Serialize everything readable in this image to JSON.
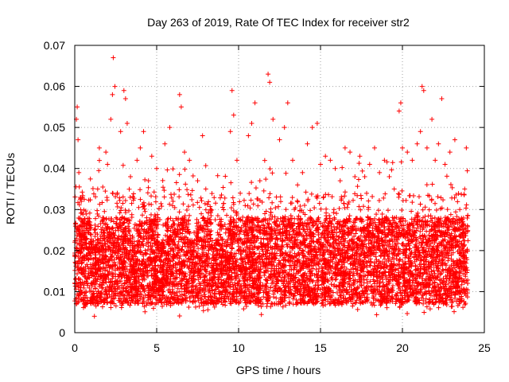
{
  "chart_data": {
    "type": "scatter",
    "title": "Day 263 of 2019, Rate Of TEC Index for receiver str2",
    "xlabel": "GPS time / hours",
    "ylabel": "ROTI / TECUs",
    "xlim": [
      0,
      25
    ],
    "ylim": [
      0,
      0.07
    ],
    "x_ticks": [
      0,
      5,
      10,
      15,
      20,
      25
    ],
    "x_tick_labels": [
      "0",
      "5",
      "10",
      "15",
      "20",
      "25"
    ],
    "y_ticks": [
      0,
      0.01,
      0.02,
      0.03,
      0.04,
      0.05,
      0.06,
      0.07
    ],
    "y_tick_labels": [
      "0",
      "0.01",
      "0.02",
      "0.03",
      "0.04",
      "0.05",
      "0.06",
      "0.07"
    ],
    "grid": true,
    "marker": "+",
    "series_color": "#ff0000",
    "x_range": [
      0,
      24
    ],
    "points": [
      [
        0.05,
        0.013
      ],
      [
        0.1,
        0.052
      ],
      [
        0.15,
        0.055
      ],
      [
        0.2,
        0.047
      ],
      [
        0.25,
        0.039
      ],
      [
        0.3,
        0.02
      ],
      [
        0.4,
        0.032
      ],
      [
        0.5,
        0.015
      ],
      [
        0.6,
        0.022
      ],
      [
        0.8,
        0.018
      ],
      [
        1.0,
        0.012
      ],
      [
        1.1,
        0.008
      ],
      [
        1.2,
        0.004
      ],
      [
        1.4,
        0.035
      ],
      [
        1.5,
        0.045
      ],
      [
        1.7,
        0.028
      ],
      [
        1.9,
        0.044
      ],
      [
        2.0,
        0.041
      ],
      [
        2.2,
        0.052
      ],
      [
        2.3,
        0.058
      ],
      [
        2.35,
        0.067
      ],
      [
        2.45,
        0.06
      ],
      [
        2.6,
        0.034
      ],
      [
        2.8,
        0.049
      ],
      [
        3.0,
        0.059
      ],
      [
        3.1,
        0.057
      ],
      [
        3.2,
        0.051
      ],
      [
        3.4,
        0.038
      ],
      [
        3.6,
        0.012
      ],
      [
        3.8,
        0.042
      ],
      [
        4.0,
        0.045
      ],
      [
        4.2,
        0.049
      ],
      [
        4.5,
        0.037
      ],
      [
        4.7,
        0.043
      ],
      [
        5.0,
        0.04
      ],
      [
        5.2,
        0.011
      ],
      [
        5.5,
        0.046
      ],
      [
        5.8,
        0.05
      ],
      [
        6.0,
        0.032
      ],
      [
        6.2,
        0.012
      ],
      [
        6.4,
        0.058
      ],
      [
        6.5,
        0.055
      ],
      [
        6.7,
        0.044
      ],
      [
        7.0,
        0.042
      ],
      [
        7.2,
        0.009
      ],
      [
        7.5,
        0.037
      ],
      [
        7.8,
        0.048
      ],
      [
        8.0,
        0.035
      ],
      [
        8.3,
        0.03
      ],
      [
        8.6,
        0.015
      ],
      [
        8.8,
        0.013
      ],
      [
        9.0,
        0.02
      ],
      [
        9.3,
        0.018
      ],
      [
        9.5,
        0.049
      ],
      [
        9.6,
        0.059
      ],
      [
        9.7,
        0.053
      ],
      [
        9.9,
        0.042
      ],
      [
        10.1,
        0.025
      ],
      [
        10.3,
        0.02
      ],
      [
        10.6,
        0.048
      ],
      [
        10.8,
        0.051
      ],
      [
        11.0,
        0.056
      ],
      [
        11.3,
        0.037
      ],
      [
        11.6,
        0.029
      ],
      [
        11.8,
        0.063
      ],
      [
        11.9,
        0.061
      ],
      [
        12.1,
        0.052
      ],
      [
        12.5,
        0.047
      ],
      [
        12.8,
        0.05
      ],
      [
        13.0,
        0.056
      ],
      [
        13.3,
        0.042
      ],
      [
        13.6,
        0.036
      ],
      [
        13.9,
        0.039
      ],
      [
        14.2,
        0.046
      ],
      [
        14.5,
        0.05
      ],
      [
        14.8,
        0.051
      ],
      [
        15.0,
        0.041
      ],
      [
        15.3,
        0.043
      ],
      [
        15.6,
        0.042
      ],
      [
        15.9,
        0.04
      ],
      [
        16.2,
        0.037
      ],
      [
        16.5,
        0.045
      ],
      [
        16.8,
        0.044
      ],
      [
        17.1,
        0.038
      ],
      [
        17.4,
        0.043
      ],
      [
        17.7,
        0.038
      ],
      [
        18.0,
        0.041
      ],
      [
        18.3,
        0.045
      ],
      [
        18.6,
        0.039
      ],
      [
        18.9,
        0.042
      ],
      [
        19.2,
        0.038
      ],
      [
        19.5,
        0.035
      ],
      [
        19.8,
        0.054
      ],
      [
        19.9,
        0.056
      ],
      [
        20.0,
        0.045
      ],
      [
        20.3,
        0.044
      ],
      [
        20.6,
        0.042
      ],
      [
        20.9,
        0.046
      ],
      [
        21.1,
        0.049
      ],
      [
        21.2,
        0.06
      ],
      [
        21.3,
        0.059
      ],
      [
        21.5,
        0.045
      ],
      [
        21.8,
        0.052
      ],
      [
        22.0,
        0.042
      ],
      [
        22.2,
        0.046
      ],
      [
        22.4,
        0.057
      ],
      [
        22.6,
        0.041
      ],
      [
        22.9,
        0.044
      ],
      [
        23.2,
        0.047
      ],
      [
        23.5,
        0.03
      ],
      [
        23.8,
        0.035
      ],
      [
        23.9,
        0.045
      ]
    ]
  }
}
